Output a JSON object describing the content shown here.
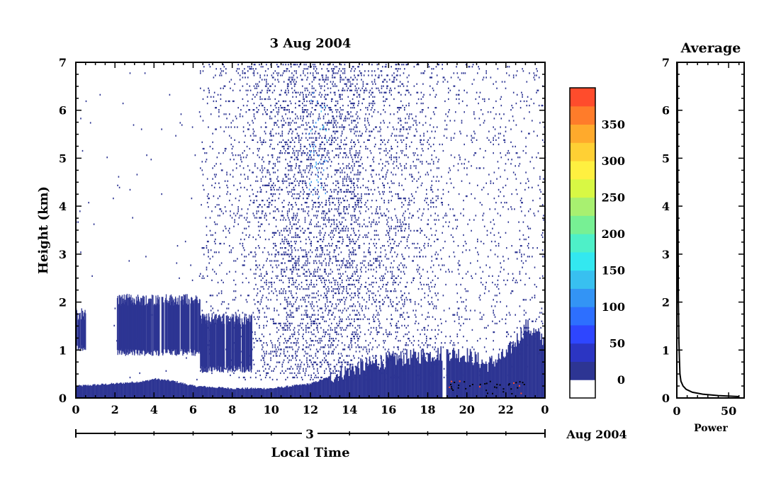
{
  "chart_data": [
    {
      "type": "heatmap",
      "title": "3 Aug 2004",
      "xlabel": "Local Time",
      "ylabel": "Height (km)",
      "xlim": [
        0,
        24
      ],
      "ylim": [
        0,
        7
      ],
      "x_ticks": [
        "0",
        "2",
        "4",
        "6",
        "8",
        "10",
        "12",
        "14",
        "16",
        "18",
        "20",
        "22",
        "0"
      ],
      "y_ticks": [
        "0",
        "1",
        "2",
        "3",
        "4",
        "5",
        "6",
        "7"
      ],
      "date_axis": {
        "day_label": "3",
        "month_label": "Aug 2004"
      },
      "colorbar": {
        "ticks": [
          "0",
          "50",
          "100",
          "150",
          "200",
          "250",
          "300",
          "350"
        ],
        "colors": [
          "#ffffff",
          "#2d3593",
          "#2b35c3",
          "#2e46ff",
          "#2d6fff",
          "#3394f5",
          "#38c0f0",
          "#33e8f0",
          "#4ef0c8",
          "#77f094",
          "#a8f070",
          "#d8f844",
          "#fff040",
          "#ffd034",
          "#ffaa2c",
          "#ff7c2a",
          "#ff4c2c"
        ]
      },
      "regions": [
        {
          "x0": 0.0,
          "x1": 0.5,
          "h0": 1.05,
          "h1": 1.75
        },
        {
          "x0": 2.1,
          "x1": 6.35,
          "h0": 0.95,
          "h1": 2.05
        },
        {
          "x0": 6.35,
          "x1": 9.0,
          "h0": 0.6,
          "h1": 1.65
        }
      ],
      "boundary_layer": [
        [
          0,
          0.25
        ],
        [
          2,
          0.3
        ],
        [
          3.5,
          0.35
        ],
        [
          4,
          0.4
        ],
        [
          5,
          0.35
        ],
        [
          6,
          0.25
        ],
        [
          8,
          0.2
        ],
        [
          10,
          0.2
        ],
        [
          12,
          0.3
        ],
        [
          14,
          0.6
        ],
        [
          16,
          0.8
        ],
        [
          18,
          0.9
        ],
        [
          19,
          0.95
        ],
        [
          20,
          0.9
        ],
        [
          21,
          0.7
        ],
        [
          22,
          0.9
        ],
        [
          23,
          1.5
        ],
        [
          24,
          1.2
        ]
      ]
    },
    {
      "type": "line",
      "title": "Average",
      "xlabel": "Power",
      "xlim": [
        0,
        65
      ],
      "ylim": [
        0,
        7
      ],
      "x_ticks": [
        "0",
        "50"
      ],
      "y_ticks": [
        "0",
        "1",
        "2",
        "3",
        "4",
        "5",
        "6",
        "7"
      ],
      "x": [
        60,
        40,
        25,
        15,
        9,
        6,
        4,
        3,
        2.5,
        2,
        1.5,
        1,
        0.5
      ],
      "y": [
        0.03,
        0.05,
        0.08,
        0.12,
        0.18,
        0.25,
        0.35,
        0.5,
        0.8,
        1.2,
        2,
        4,
        7
      ]
    }
  ]
}
